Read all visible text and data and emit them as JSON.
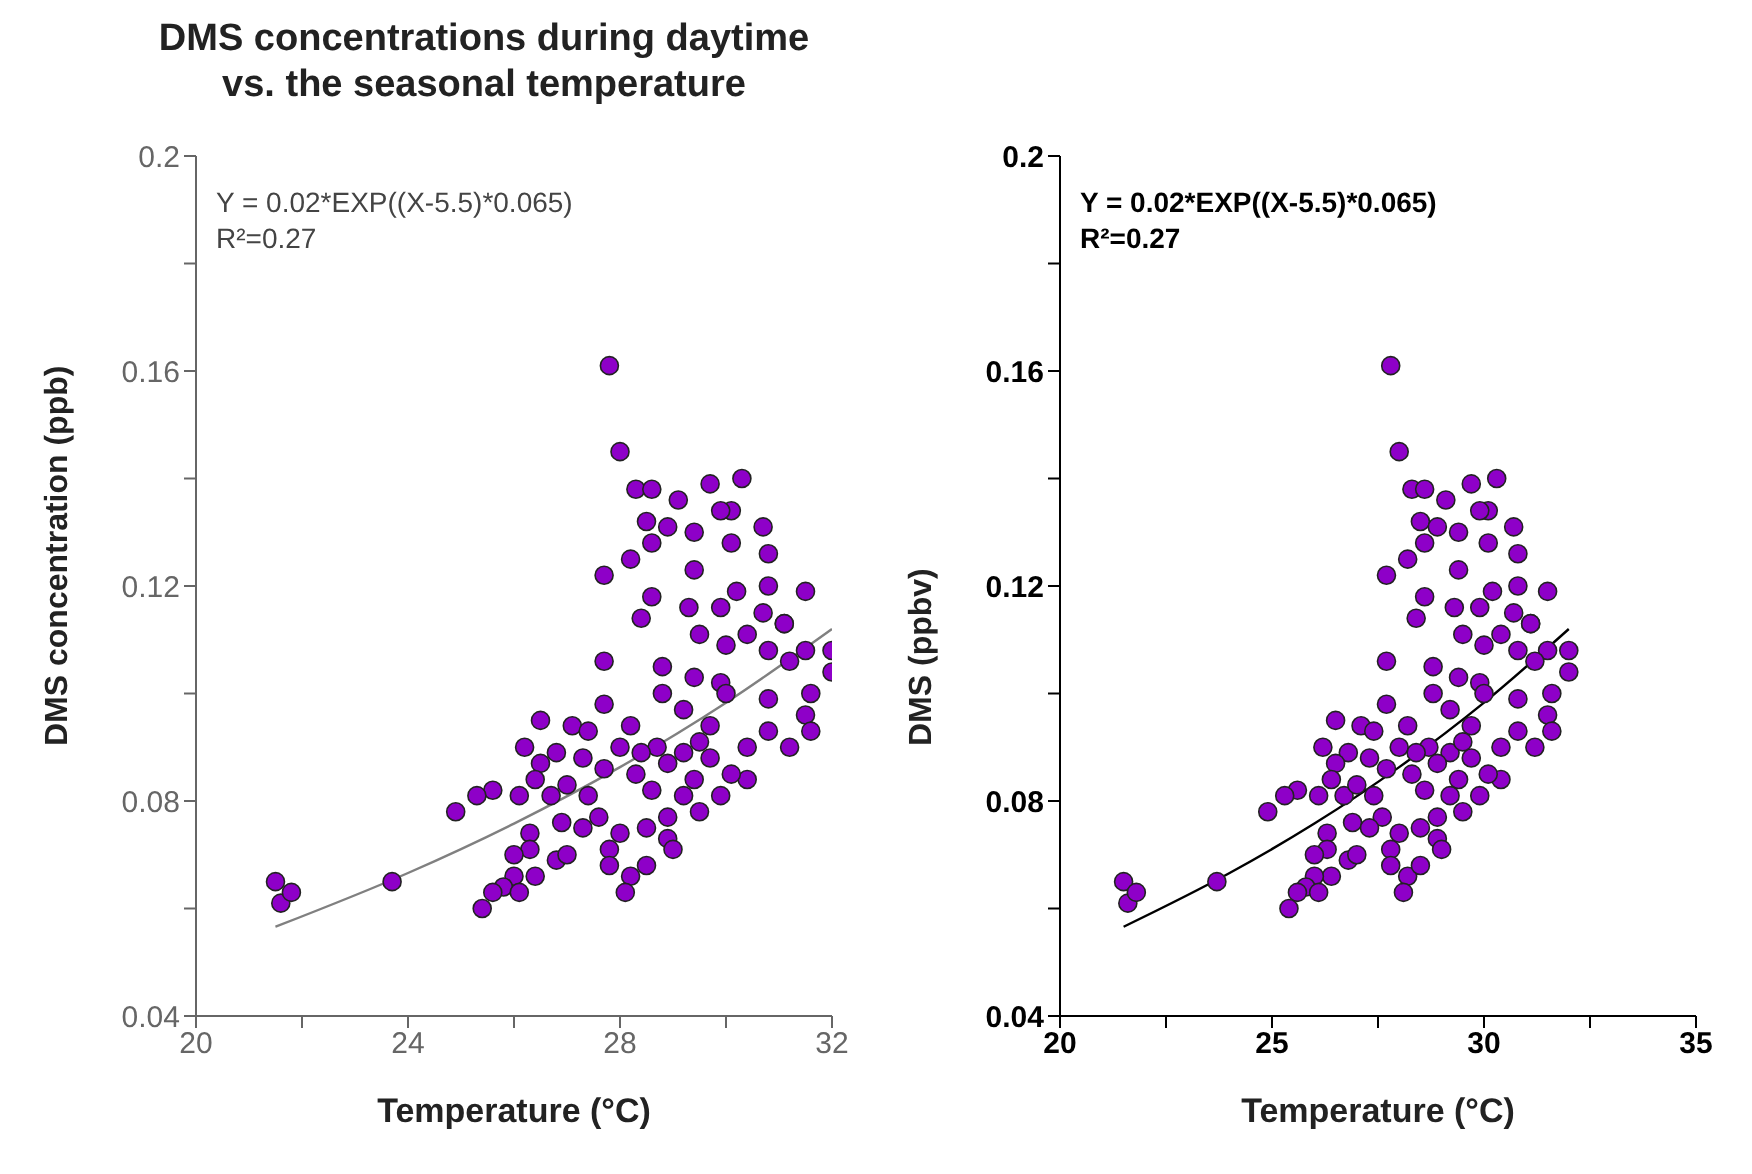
{
  "chart_data": [
    {
      "type": "scatter",
      "title": "DMS concentrations during daytime\nvs. the seasonal temperature",
      "xlabel": "Temperature (°C)",
      "ylabel": "DMS concentration (ppb)",
      "annotations": [
        "Y = 0.02*EXP((X-5.5)*0.065)",
        "R²=0.27"
      ],
      "xlim": [
        20,
        32
      ],
      "xticks": [
        20,
        {
          "value": 22,
          "label": null
        },
        24,
        {
          "value": 26,
          "label": null
        },
        28,
        {
          "value": 30,
          "label": null
        },
        32
      ],
      "ylim": [
        0.04,
        0.2
      ],
      "yticks": [
        0.04,
        {
          "value": 0.06,
          "label": null
        },
        0.08,
        {
          "value": 0.1,
          "label": null
        },
        0.12,
        {
          "value": 0.14,
          "label": null
        },
        0.16,
        {
          "value": 0.18,
          "label": null
        },
        0.2
      ],
      "marker": "circle",
      "series": [
        {
          "color": "#8e00c8",
          "x": [
            27.8,
            28.0,
            28.3,
            28.6,
            29.1,
            29.7,
            30.3,
            30.1,
            29.9,
            28.5,
            28.9,
            29.4,
            28.6,
            30.7,
            30.8,
            30.1,
            28.2,
            27.7,
            29.4,
            30.8,
            31.5,
            28.6,
            30.2,
            28.4,
            29.3,
            29.9,
            30.7,
            31.1,
            30.4,
            29.5,
            31.1,
            32.0,
            31.5,
            32.0,
            30.8,
            31.2,
            30.0,
            27.7,
            28.8,
            29.4,
            31.6,
            30.8,
            28.8,
            29.9,
            27.7,
            31.5,
            31.6,
            30.8,
            26.5,
            27.1,
            27.4,
            28.2,
            31.2,
            30.4,
            26.2,
            26.8,
            27.3,
            28.0,
            28.7,
            29.2,
            29.7,
            30.4,
            30.1,
            26.5,
            28.4,
            28.9,
            29.4,
            26.4,
            25.6,
            25.3,
            24.9,
            26.1,
            26.7,
            27.0,
            27.4,
            27.7,
            28.3,
            28.6,
            29.2,
            29.9,
            29.5,
            28.9,
            27.6,
            26.9,
            27.3,
            28.0,
            28.5,
            27.8,
            28.9,
            29.0,
            26.3,
            26.3,
            26.0,
            26.8,
            27.0,
            27.8,
            28.2,
            28.5,
            26.4,
            26.0,
            25.8,
            26.1,
            25.6,
            25.4,
            28.1,
            21.5,
            21.6,
            21.8,
            23.7,
            29.2,
            29.7,
            30.0,
            29.5
          ],
          "values": [
            0.161,
            0.145,
            0.138,
            0.138,
            0.136,
            0.139,
            0.14,
            0.134,
            0.134,
            0.132,
            0.131,
            0.13,
            0.128,
            0.131,
            0.126,
            0.128,
            0.125,
            0.122,
            0.123,
            0.12,
            0.119,
            0.118,
            0.119,
            0.114,
            0.116,
            0.116,
            0.115,
            0.113,
            0.111,
            0.111,
            0.113,
            0.108,
            0.108,
            0.104,
            0.108,
            0.106,
            0.109,
            0.106,
            0.105,
            0.103,
            0.1,
            0.099,
            0.1,
            0.102,
            0.098,
            0.096,
            0.093,
            0.093,
            0.095,
            0.094,
            0.093,
            0.094,
            0.09,
            0.09,
            0.09,
            0.089,
            0.088,
            0.09,
            0.09,
            0.089,
            0.088,
            0.084,
            0.085,
            0.087,
            0.089,
            0.087,
            0.084,
            0.084,
            0.082,
            0.081,
            0.078,
            0.081,
            0.081,
            0.083,
            0.081,
            0.086,
            0.085,
            0.082,
            0.081,
            0.081,
            0.078,
            0.077,
            0.077,
            0.076,
            0.075,
            0.074,
            0.075,
            0.071,
            0.073,
            0.071,
            0.074,
            0.071,
            0.07,
            0.069,
            0.07,
            0.068,
            0.066,
            0.068,
            0.066,
            0.066,
            0.064,
            0.063,
            0.063,
            0.06,
            0.063,
            0.065,
            0.061,
            0.063,
            0.065,
            0.097,
            0.094,
            0.1,
            0.091
          ]
        },
        {
          "type": "line",
          "marker": "none",
          "color": "#808080",
          "x": [
            21.5,
            24,
            26,
            28,
            30,
            32
          ],
          "values": [
            0.0566,
            0.0666,
            0.0758,
            0.0863,
            0.0983,
            0.112
          ]
        }
      ]
    },
    {
      "type": "scatter",
      "xlabel": "Temperature (°C)",
      "ylabel": "DMS (ppbv)",
      "annotations": [
        "Y = 0.02*EXP((X-5.5)*0.065)",
        "R²=0.27"
      ],
      "xlim": [
        20,
        35
      ],
      "xticks": [
        20,
        {
          "value": 22.5,
          "label": null
        },
        25,
        {
          "value": 27.5,
          "label": null
        },
        30,
        {
          "value": 32.5,
          "label": null
        },
        35
      ],
      "ylim": [
        0.04,
        0.2
      ],
      "yticks": [
        0.04,
        {
          "value": 0.06,
          "label": null
        },
        0.08,
        {
          "value": 0.1,
          "label": null
        },
        0.12,
        {
          "value": 0.14,
          "label": null
        },
        0.16,
        {
          "value": 0.18,
          "label": null
        },
        0.2
      ],
      "marker": "circle",
      "series": [
        {
          "color": "#8e00c8",
          "x": [
            27.8,
            28.0,
            28.3,
            28.6,
            29.1,
            29.7,
            30.3,
            30.1,
            29.9,
            28.5,
            28.9,
            29.4,
            28.6,
            30.7,
            30.8,
            30.1,
            28.2,
            27.7,
            29.4,
            30.8,
            31.5,
            28.6,
            30.2,
            28.4,
            29.3,
            29.9,
            30.7,
            31.1,
            30.4,
            29.5,
            31.1,
            32.0,
            31.5,
            32.0,
            30.8,
            31.2,
            30.0,
            27.7,
            28.8,
            29.4,
            31.6,
            30.8,
            28.8,
            29.9,
            27.7,
            31.5,
            31.6,
            30.8,
            26.5,
            27.1,
            27.4,
            28.2,
            31.2,
            30.4,
            26.2,
            26.8,
            27.3,
            28.0,
            28.7,
            29.2,
            29.7,
            30.4,
            30.1,
            26.5,
            28.4,
            28.9,
            29.4,
            26.4,
            25.6,
            25.3,
            24.9,
            26.1,
            26.7,
            27.0,
            27.4,
            27.7,
            28.3,
            28.6,
            29.2,
            29.9,
            29.5,
            28.9,
            27.6,
            26.9,
            27.3,
            28.0,
            28.5,
            27.8,
            28.9,
            29.0,
            26.3,
            26.3,
            26.0,
            26.8,
            27.0,
            27.8,
            28.2,
            28.5,
            26.4,
            26.0,
            25.8,
            26.1,
            25.6,
            25.4,
            28.1,
            21.5,
            21.6,
            21.8,
            23.7,
            29.2,
            29.7,
            30.0,
            29.5
          ],
          "values": [
            0.161,
            0.145,
            0.138,
            0.138,
            0.136,
            0.139,
            0.14,
            0.134,
            0.134,
            0.132,
            0.131,
            0.13,
            0.128,
            0.131,
            0.126,
            0.128,
            0.125,
            0.122,
            0.123,
            0.12,
            0.119,
            0.118,
            0.119,
            0.114,
            0.116,
            0.116,
            0.115,
            0.113,
            0.111,
            0.111,
            0.113,
            0.108,
            0.108,
            0.104,
            0.108,
            0.106,
            0.109,
            0.106,
            0.105,
            0.103,
            0.1,
            0.099,
            0.1,
            0.102,
            0.098,
            0.096,
            0.093,
            0.093,
            0.095,
            0.094,
            0.093,
            0.094,
            0.09,
            0.09,
            0.09,
            0.089,
            0.088,
            0.09,
            0.09,
            0.089,
            0.088,
            0.084,
            0.085,
            0.087,
            0.089,
            0.087,
            0.084,
            0.084,
            0.082,
            0.081,
            0.078,
            0.081,
            0.081,
            0.083,
            0.081,
            0.086,
            0.085,
            0.082,
            0.081,
            0.081,
            0.078,
            0.077,
            0.077,
            0.076,
            0.075,
            0.074,
            0.075,
            0.071,
            0.073,
            0.071,
            0.074,
            0.071,
            0.07,
            0.069,
            0.07,
            0.068,
            0.066,
            0.068,
            0.066,
            0.066,
            0.064,
            0.063,
            0.063,
            0.06,
            0.063,
            0.065,
            0.061,
            0.063,
            0.065,
            0.097,
            0.094,
            0.1,
            0.091
          ]
        },
        {
          "type": "line",
          "marker": "none",
          "color": "#000000",
          "x": [
            21.5,
            24,
            26,
            28,
            30,
            32
          ],
          "values": [
            0.0566,
            0.0666,
            0.0758,
            0.0863,
            0.0983,
            0.112
          ]
        }
      ]
    }
  ]
}
